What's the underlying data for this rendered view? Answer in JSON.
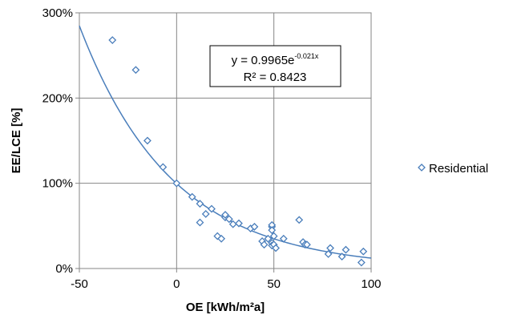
{
  "chart_data": {
    "type": "scatter",
    "xlabel": "OE [kWh/m²a]",
    "ylabel": "EE/LCE [%]",
    "xlim": [
      -50,
      100
    ],
    "ylim": [
      0,
      300
    ],
    "x_ticks": [
      "-50",
      "0",
      "50",
      "100"
    ],
    "y_ticks": [
      "0%",
      "100%",
      "200%",
      "300%"
    ],
    "x_tick_values": [
      -50,
      0,
      50,
      100
    ],
    "y_tick_values": [
      0,
      100,
      200,
      300
    ],
    "grid": true,
    "legend_position": "right",
    "series": [
      {
        "name": "Residential",
        "marker": "diamond",
        "color": "#4a7ebb",
        "points": [
          [
            -33,
            268
          ],
          [
            -21,
            233
          ],
          [
            -15,
            150
          ],
          [
            -7,
            119
          ],
          [
            0,
            100
          ],
          [
            8,
            84
          ],
          [
            12,
            76
          ],
          [
            12,
            54
          ],
          [
            15,
            64
          ],
          [
            18,
            70
          ],
          [
            21,
            38
          ],
          [
            23,
            35
          ],
          [
            25,
            60
          ],
          [
            25,
            63
          ],
          [
            27,
            58
          ],
          [
            29,
            52
          ],
          [
            32,
            53
          ],
          [
            38,
            47
          ],
          [
            40,
            49
          ],
          [
            44,
            32
          ],
          [
            45,
            28
          ],
          [
            47,
            35
          ],
          [
            49,
            49
          ],
          [
            49,
            51
          ],
          [
            49,
            45
          ],
          [
            49,
            30
          ],
          [
            49,
            27
          ],
          [
            50,
            38
          ],
          [
            50,
            28
          ],
          [
            51,
            24
          ],
          [
            55,
            35
          ],
          [
            63,
            57
          ],
          [
            65,
            31
          ],
          [
            66,
            28
          ],
          [
            67,
            28
          ],
          [
            78,
            17
          ],
          [
            79,
            24
          ],
          [
            85,
            14
          ],
          [
            87,
            22
          ],
          [
            95,
            7
          ],
          [
            96,
            20
          ]
        ]
      }
    ],
    "trendline": {
      "type": "exponential",
      "a": 0.9965,
      "b": -0.021,
      "color": "#4a7ebb"
    },
    "annotation": {
      "equation_prefix": "y = 0.9965e",
      "equation_exponent": "-0.021x",
      "r_squared": "R² = 0.8423"
    }
  }
}
